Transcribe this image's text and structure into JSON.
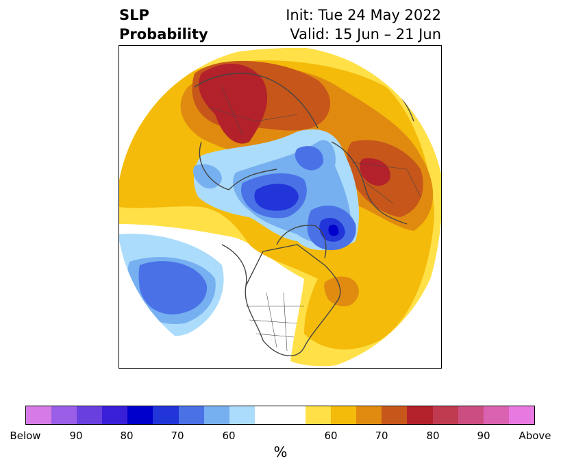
{
  "title": {
    "left_line1": "SLP",
    "left_line2": "Probability",
    "right_line1": "Init: Tue 24 May 2022",
    "right_line2": "Valid: 15 Jun – 21 Jun"
  },
  "colorbar": {
    "unit_label": "%",
    "colors": [
      "#d57ae6",
      "#9b5ee6",
      "#6a3fe0",
      "#3a1fd9",
      "#0000cc",
      "#2235d9",
      "#4a72e6",
      "#76b0f0",
      "#acdcfb",
      "#ffffff",
      "#ffe047",
      "#f4bb0b",
      "#e08b10",
      "#c7561a",
      "#b3222a",
      "#c03a50",
      "#cc4e80",
      "#db62b0",
      "#e879e0"
    ],
    "ticks": [
      "Below",
      "90",
      "80",
      "70",
      "60",
      "60",
      "70",
      "80",
      "90",
      "Above"
    ]
  },
  "map": {
    "projection": "north polar stereographic",
    "regions": [
      {
        "name": "above-normal-yellow-ring",
        "color": "#ffe047"
      },
      {
        "name": "above-normal-orange",
        "color": "#f4bb0b"
      },
      {
        "name": "above-normal-dark-orange",
        "color": "#e08b10"
      },
      {
        "name": "above-normal-brown",
        "color": "#c7561a"
      },
      {
        "name": "above-normal-dark-red",
        "color": "#b3222a"
      },
      {
        "name": "below-normal-light-blue",
        "color": "#acdcfb"
      },
      {
        "name": "below-normal-sky-blue",
        "color": "#76b0f0"
      },
      {
        "name": "below-normal-blue",
        "color": "#4a72e6"
      },
      {
        "name": "below-normal-royal-blue",
        "color": "#2235d9"
      },
      {
        "name": "below-normal-deep-blue",
        "color": "#0000cc"
      }
    ]
  }
}
